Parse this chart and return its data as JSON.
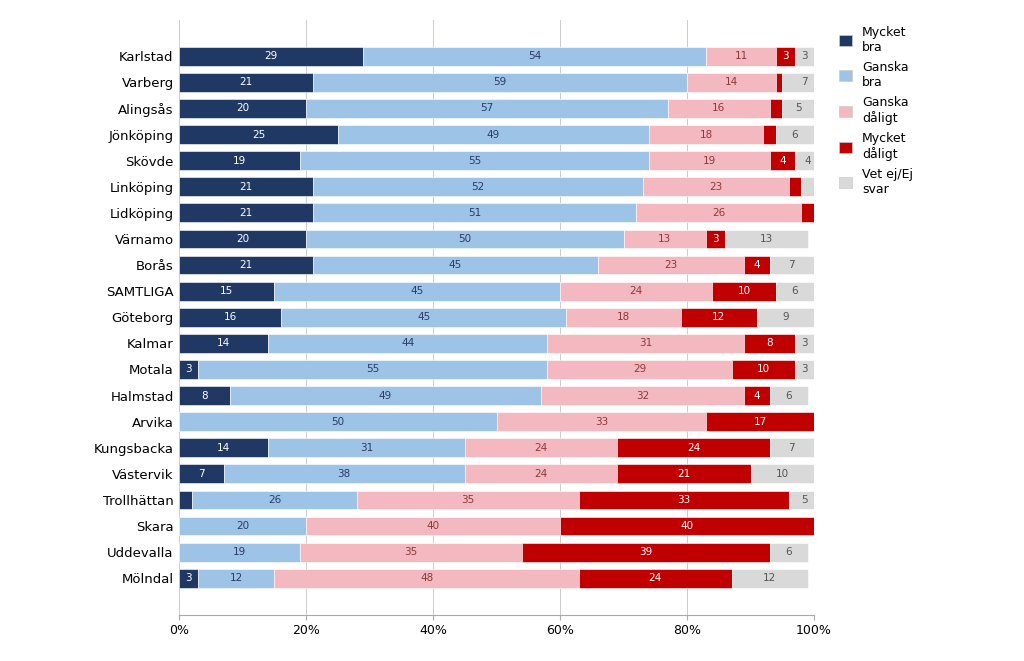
{
  "categories": [
    "Karlstad",
    "Varberg",
    "Alingsås",
    "Jönköping",
    "Skövde",
    "Linköping",
    "Lidköping",
    "Värnamo",
    "Borås",
    "SAMTLIGA",
    "Göteborg",
    "Kalmar",
    "Motala",
    "Halmstad",
    "Arvika",
    "Kungsbacka",
    "Västervik",
    "Trollhättan",
    "Skara",
    "Uddevalla",
    "Mölndal"
  ],
  "mycket_bra": [
    29,
    21,
    20,
    25,
    19,
    21,
    21,
    20,
    21,
    15,
    16,
    14,
    3,
    8,
    0,
    14,
    7,
    2,
    0,
    0,
    3
  ],
  "ganska_bra": [
    54,
    59,
    57,
    49,
    55,
    52,
    51,
    50,
    45,
    45,
    45,
    44,
    55,
    49,
    50,
    31,
    38,
    26,
    20,
    19,
    12
  ],
  "ganska_daligt": [
    11,
    14,
    16,
    18,
    19,
    23,
    26,
    13,
    23,
    24,
    18,
    31,
    29,
    32,
    33,
    24,
    24,
    35,
    40,
    35,
    48
  ],
  "mycket_daligt": [
    3,
    1,
    2,
    2,
    4,
    2,
    2,
    3,
    4,
    10,
    12,
    8,
    10,
    4,
    17,
    24,
    21,
    33,
    40,
    39,
    24
  ],
  "vet_ej": [
    3,
    7,
    5,
    6,
    4,
    2,
    2,
    13,
    7,
    6,
    9,
    3,
    3,
    6,
    0,
    7,
    10,
    5,
    0,
    6,
    12
  ],
  "color_mycket_bra": "#1f3864",
  "color_ganska_bra": "#9dc3e6",
  "color_ganska_daligt": "#f4b8c1",
  "color_mycket_daligt": "#c00000",
  "color_vet_ej": "#d9d9d9",
  "legend_labels": [
    "Mycket\nbra",
    "Ganska\nbra",
    "Ganska\ndåligt",
    "Mycket\ndåligt",
    "Vet ej/Ej\nsvar"
  ],
  "background_color": "#ffffff",
  "bar_height": 0.72,
  "figsize": [
    10.24,
    6.61
  ],
  "dpi": 100
}
